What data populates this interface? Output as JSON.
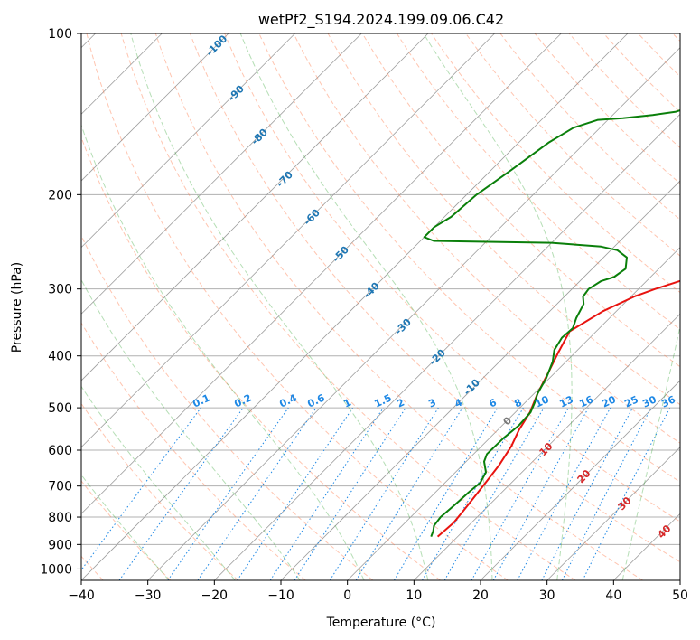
{
  "chart_data": {
    "type": "line",
    "title": "wetPf2_S194.2024.199.09.06.C42",
    "xlabel": "Temperature (°C)",
    "ylabel": "Pressure (hPa)",
    "xlim": [
      -40,
      50
    ],
    "ylim": [
      1050,
      100
    ],
    "y_scale": "log",
    "x_ticks": [
      -40,
      -30,
      -20,
      -10,
      0,
      10,
      20,
      30,
      40,
      50
    ],
    "y_ticks": [
      100,
      200,
      300,
      400,
      500,
      600,
      700,
      800,
      900,
      1000
    ],
    "grid": true,
    "series": [
      {
        "role": "temperature",
        "color": "#e8130f",
        "points": [
          [
            7.0,
            870
          ],
          [
            7.3,
            820
          ],
          [
            7.0,
            780
          ],
          [
            6.2,
            700
          ],
          [
            5.5,
            640
          ],
          [
            4.5,
            590
          ],
          [
            3.2,
            550
          ],
          [
            2.2,
            510
          ],
          [
            0.5,
            470
          ],
          [
            -1.0,
            430
          ],
          [
            -2.5,
            395
          ],
          [
            -4.0,
            360
          ],
          [
            -2.0,
            330
          ],
          [
            0.5,
            310
          ],
          [
            2.5,
            300
          ],
          [
            5.0,
            290
          ],
          [
            6.5,
            285
          ],
          [
            9.0,
            275
          ],
          [
            11.5,
            265
          ],
          [
            14.0,
            257
          ],
          [
            15.5,
            250
          ],
          [
            17.0,
            235
          ],
          [
            19.5,
            220
          ],
          [
            20.5,
            205
          ],
          [
            22.5,
            190
          ],
          [
            23.5,
            180
          ],
          [
            25.0,
            170
          ],
          [
            26.0,
            160
          ],
          [
            27.5,
            150
          ],
          [
            28.5,
            140
          ],
          [
            29.5,
            130
          ],
          [
            30.5,
            122
          ],
          [
            31.5,
            115
          ],
          [
            33.0,
            110
          ],
          [
            34.0,
            105
          ],
          [
            35.0,
            100
          ]
        ]
      },
      {
        "role": "dewpoint",
        "color": "#0a7f0a",
        "points": [
          [
            6.0,
            870
          ],
          [
            5.5,
            850
          ],
          [
            4.8,
            830
          ],
          [
            4.5,
            800
          ],
          [
            4.8,
            760
          ],
          [
            5.0,
            720
          ],
          [
            5.3,
            690
          ],
          [
            4.6,
            660
          ],
          [
            2.7,
            630
          ],
          [
            2.0,
            610
          ],
          [
            2.1,
            570
          ],
          [
            2.5,
            540
          ],
          [
            2.3,
            510
          ],
          [
            1.5,
            490
          ],
          [
            0.5,
            470
          ],
          [
            -0.5,
            440
          ],
          [
            -2.0,
            410
          ],
          [
            -3.5,
            390
          ],
          [
            -4.2,
            370
          ],
          [
            -4.0,
            355
          ],
          [
            -5.0,
            340
          ],
          [
            -6.0,
            320
          ],
          [
            -7.2,
            310
          ],
          [
            -7.5,
            300
          ],
          [
            -6.8,
            290
          ],
          [
            -5.5,
            285
          ],
          [
            -5.0,
            275
          ],
          [
            -6.5,
            262
          ],
          [
            -9.0,
            254
          ],
          [
            -12.0,
            250
          ],
          [
            -20.0,
            246
          ],
          [
            -38.0,
            244
          ],
          [
            -40.0,
            240
          ],
          [
            -40.0,
            230
          ],
          [
            -39.0,
            220
          ],
          [
            -38.5,
            200
          ],
          [
            -37.0,
            180
          ],
          [
            -35.5,
            160
          ],
          [
            -34.0,
            150
          ],
          [
            -31.5,
            145
          ],
          [
            -28.0,
            144
          ],
          [
            -24.0,
            142
          ],
          [
            -21.0,
            140
          ],
          [
            -18.5,
            135
          ],
          [
            -17.0,
            130
          ],
          [
            -15.5,
            120
          ],
          [
            -14.0,
            110
          ],
          [
            -12.0,
            105
          ],
          [
            -10.5,
            100
          ]
        ]
      }
    ],
    "isotherm_labels": [
      "-100",
      "-90",
      "-80",
      "-70",
      "-60",
      "-50",
      "-40",
      "-30",
      "-20",
      "-10"
    ],
    "mixing_ratio_labels": [
      "0.1",
      "0.2",
      "0.4",
      "0.6",
      "1",
      "1.5",
      "2",
      "3",
      "4",
      "6",
      "8",
      "10",
      "13",
      "16",
      "20",
      "25",
      "30",
      "36"
    ],
    "moist_adiabat_labels": [
      "0",
      "10",
      "20",
      "30",
      "40"
    ],
    "colors": {
      "isotherm_label": "#1f77b4",
      "mixing_ratio": "#1e88e5",
      "moist_adiabat_label": "#d62728",
      "dry_adiabat": "#ff7f50",
      "moist_adiabat": "#2ca02c"
    }
  }
}
